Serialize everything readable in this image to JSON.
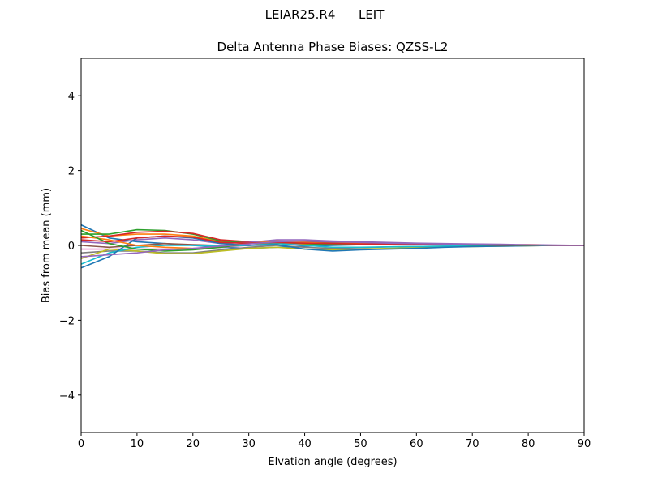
{
  "suptitle": "LEIAR25.R4      LEIT",
  "chart_data": {
    "type": "line",
    "title": "Delta Antenna Phase Biases: QZSS-L2",
    "xlabel": "Elvation angle (degrees)",
    "ylabel": "Bias from mean (mm)",
    "xlim": [
      0,
      90
    ],
    "ylim": [
      -5,
      5
    ],
    "xticks": [
      0,
      10,
      20,
      30,
      40,
      50,
      60,
      70,
      80,
      90
    ],
    "yticks": [
      -4,
      -2,
      0,
      2,
      4
    ],
    "ytick_labels": [
      "−4",
      "−2",
      "0",
      "2",
      "4"
    ],
    "grid": false,
    "x": [
      0,
      5,
      10,
      15,
      20,
      25,
      30,
      35,
      40,
      45,
      50,
      55,
      60,
      65,
      70,
      75,
      80,
      85,
      90
    ],
    "series_colors": [
      "#1f77b4",
      "#ff7f0e",
      "#2ca02c",
      "#d62728",
      "#9467bd",
      "#8c564b",
      "#e377c2",
      "#7f7f7f",
      "#bcbd22",
      "#17becf"
    ],
    "series": [
      {
        "values": [
          0.55,
          0.2,
          0.1,
          0.05,
          0.0,
          -0.05,
          -0.08,
          -0.05,
          -0.02,
          0.0,
          0.02,
          0.03,
          0.03,
          0.02,
          0.02,
          0.01,
          0.01,
          0.0,
          0.0
        ]
      },
      {
        "values": [
          0.45,
          0.25,
          0.3,
          0.3,
          0.25,
          0.1,
          0.05,
          0.05,
          0.03,
          0.03,
          0.02,
          0.02,
          0.02,
          0.02,
          0.01,
          0.01,
          0.01,
          0.0,
          0.0
        ]
      },
      {
        "values": [
          0.3,
          0.3,
          0.42,
          0.4,
          0.3,
          0.12,
          0.08,
          0.1,
          0.08,
          0.07,
          0.06,
          0.05,
          0.04,
          0.03,
          0.02,
          0.02,
          0.01,
          0.0,
          0.0
        ]
      },
      {
        "values": [
          0.2,
          0.25,
          0.35,
          0.38,
          0.32,
          0.15,
          0.1,
          0.12,
          0.1,
          0.08,
          0.07,
          0.06,
          0.05,
          0.04,
          0.03,
          0.02,
          0.01,
          0.0,
          0.0
        ]
      },
      {
        "values": [
          0.1,
          0.05,
          0.15,
          0.2,
          0.15,
          0.05,
          0.08,
          0.15,
          0.15,
          0.12,
          0.1,
          0.08,
          0.06,
          0.05,
          0.04,
          0.03,
          0.02,
          0.01,
          0.0
        ]
      },
      {
        "values": [
          0.0,
          -0.05,
          0.0,
          0.05,
          0.02,
          0.0,
          0.05,
          0.1,
          0.1,
          0.08,
          0.06,
          0.05,
          0.04,
          0.03,
          0.02,
          0.02,
          0.01,
          0.0,
          0.0
        ]
      },
      {
        "values": [
          -0.1,
          -0.1,
          -0.1,
          -0.1,
          -0.1,
          -0.05,
          0.0,
          0.05,
          0.05,
          0.05,
          0.04,
          0.03,
          0.03,
          0.02,
          0.02,
          0.01,
          0.01,
          0.0,
          0.0
        ]
      },
      {
        "values": [
          -0.2,
          -0.15,
          -0.15,
          -0.2,
          -0.2,
          -0.12,
          -0.05,
          0.0,
          -0.05,
          -0.08,
          -0.06,
          -0.04,
          -0.03,
          -0.02,
          -0.01,
          -0.01,
          0.0,
          0.0,
          0.0
        ]
      },
      {
        "values": [
          -0.35,
          -0.1,
          -0.15,
          -0.22,
          -0.22,
          -0.15,
          -0.08,
          -0.05,
          -0.1,
          -0.12,
          -0.1,
          -0.08,
          -0.06,
          -0.04,
          -0.03,
          -0.02,
          -0.01,
          0.0,
          0.0
        ]
      },
      {
        "values": [
          -0.5,
          -0.2,
          -0.05,
          0.0,
          0.0,
          -0.02,
          0.0,
          0.05,
          0.0,
          -0.05,
          -0.05,
          -0.04,
          -0.03,
          -0.02,
          -0.01,
          -0.01,
          0.0,
          0.0,
          0.0
        ]
      },
      {
        "values": [
          -0.6,
          -0.3,
          0.2,
          0.25,
          0.2,
          0.05,
          0.0,
          0.02,
          -0.1,
          -0.15,
          -0.12,
          -0.1,
          -0.08,
          -0.05,
          -0.03,
          -0.02,
          -0.01,
          0.0,
          0.0
        ]
      },
      {
        "values": [
          0.25,
          0.15,
          0.0,
          -0.05,
          -0.08,
          -0.05,
          0.05,
          0.12,
          0.08,
          0.05,
          0.06,
          0.05,
          0.04,
          0.03,
          0.02,
          0.01,
          0.01,
          0.0,
          0.0
        ]
      },
      {
        "values": [
          0.4,
          0.05,
          -0.1,
          -0.15,
          -0.12,
          -0.05,
          0.05,
          0.08,
          0.05,
          0.02,
          0.03,
          0.03,
          0.02,
          0.02,
          0.01,
          0.01,
          0.0,
          0.0,
          0.0
        ]
      },
      {
        "values": [
          0.15,
          0.1,
          0.2,
          0.25,
          0.22,
          0.08,
          0.06,
          0.08,
          0.06,
          0.05,
          0.04,
          0.04,
          0.03,
          0.02,
          0.02,
          0.01,
          0.01,
          0.0,
          0.0
        ]
      },
      {
        "values": [
          -0.3,
          -0.25,
          -0.2,
          -0.12,
          -0.08,
          -0.02,
          0.04,
          0.1,
          0.12,
          0.1,
          0.08,
          0.06,
          0.05,
          0.04,
          0.03,
          0.02,
          0.01,
          0.0,
          0.0
        ]
      }
    ]
  }
}
